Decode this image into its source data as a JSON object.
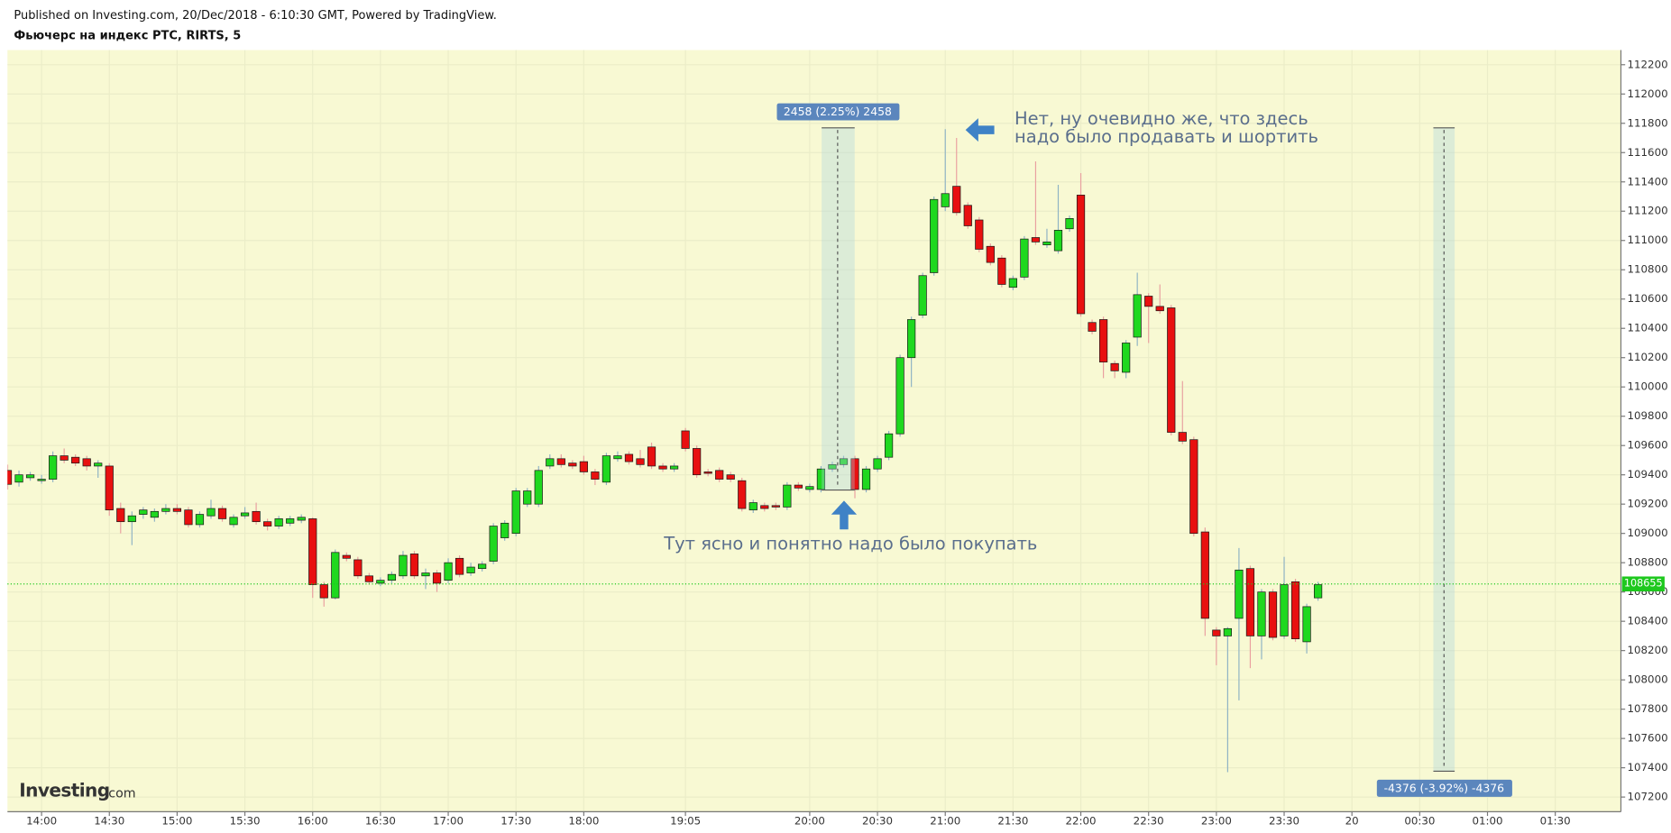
{
  "header": {
    "published": "Published on Investing.com, 20/Dec/2018 - 6:10:30 GMT, Powered by TradingView.",
    "symbol": "Фьючерс на индекс РТС, RIRTS, 5"
  },
  "logo": {
    "brand": "Investing",
    "suffix": ".com"
  },
  "chart_data": {
    "type": "candlestick",
    "up_color": "#1fd81f",
    "down_color": "#e81010",
    "grid": true,
    "categories": [
      null,
      null,
      null,
      "14:00",
      null,
      null,
      null,
      null,
      null,
      "14:30",
      null,
      null,
      null,
      null,
      null,
      "15:00",
      null,
      null,
      null,
      null,
      null,
      "15:30",
      null,
      null,
      null,
      null,
      null,
      "16:00",
      null,
      null,
      null,
      null,
      null,
      "16:30",
      null,
      null,
      null,
      null,
      null,
      "17:00",
      null,
      null,
      null,
      null,
      null,
      "17:30",
      null,
      null,
      null,
      null,
      null,
      "18:00",
      null,
      null,
      null,
      null,
      null,
      null,
      null,
      null,
      "19:05",
      null,
      null,
      null,
      null,
      null,
      null,
      null,
      null,
      null,
      null,
      "20:00",
      null,
      null,
      null,
      null,
      null,
      "20:30",
      null,
      null,
      null,
      null,
      null,
      "21:00",
      null,
      null,
      null,
      null,
      null,
      "21:30",
      null,
      null,
      null,
      null,
      null,
      "22:00",
      null,
      null,
      null,
      null,
      null,
      "22:30",
      null,
      null,
      null,
      null,
      null,
      "23:00",
      null,
      null,
      null,
      null,
      null,
      "23:30",
      null,
      null,
      null,
      null,
      null,
      "20",
      null,
      null,
      null,
      null,
      null,
      "00:30",
      null,
      null,
      null,
      null,
      null,
      "01:00",
      null,
      null,
      null,
      null,
      null,
      "01:30",
      null,
      null,
      null,
      null,
      null
    ],
    "open": [
      109430,
      109350,
      109380,
      109360,
      109370,
      109530,
      109520,
      109510,
      109460,
      109460,
      109170,
      109080,
      109130,
      109110,
      109150,
      109170,
      109160,
      109060,
      109120,
      109170,
      109060,
      109120,
      109150,
      109080,
      109050,
      109070,
      109090,
      109100,
      108650,
      108560,
      108850,
      108820,
      108710,
      108660,
      108680,
      108710,
      108860,
      108710,
      108730,
      108680,
      108830,
      108730,
      108760,
      108810,
      108970,
      109000,
      109200,
      109200,
      109460,
      109510,
      109480,
      109490,
      109420,
      109350,
      109510,
      109540,
      109510,
      109590,
      109460,
      109440,
      109700,
      109580,
      109420,
      109430,
      109400,
      109360,
      109160,
      109190,
      109190,
      109180,
      109330,
      109300,
      109300,
      109440,
      109470,
      109510,
      109300,
      109440,
      109520,
      109680,
      110200,
      110490,
      110780,
      111230,
      111370,
      111240,
      111140,
      110960,
      110880,
      110680,
      110750,
      111020,
      110970,
      110930,
      111080,
      111310,
      110440,
      110460,
      110160,
      110100,
      110340,
      110620,
      110550,
      110540,
      109690,
      109640,
      109010,
      108340,
      108300,
      108420,
      108760,
      108300,
      108600,
      108300,
      108670,
      108260,
      108560,
      null,
      null,
      null,
      null,
      null,
      null,
      null,
      null,
      null,
      null,
      null,
      null,
      null,
      null,
      null,
      null,
      null,
      null,
      null,
      null,
      null,
      null,
      null,
      null,
      null,
      null
    ],
    "high": [
      109470,
      109430,
      109420,
      109400,
      109560,
      109580,
      109540,
      109530,
      109500,
      109480,
      109210,
      109150,
      109180,
      109170,
      109200,
      109200,
      109180,
      109150,
      109230,
      109190,
      109130,
      109180,
      109210,
      109100,
      109120,
      109120,
      109130,
      109110,
      108670,
      108890,
      108870,
      108840,
      108730,
      108700,
      108740,
      108880,
      108880,
      108760,
      108750,
      108830,
      108850,
      108800,
      108810,
      109070,
      109090,
      109310,
      109310,
      109460,
      109540,
      109540,
      109500,
      109530,
      109440,
      109550,
      109560,
      109560,
      109570,
      109620,
      109480,
      109480,
      109720,
      109600,
      109440,
      109450,
      109420,
      109380,
      109230,
      109210,
      109210,
      109350,
      109350,
      109340,
      109460,
      109490,
      109530,
      109530,
      109460,
      109530,
      109700,
      110220,
      110480,
      110780,
      111300,
      111760,
      111700,
      111260,
      111160,
      110980,
      110900,
      110760,
      111030,
      111540,
      111080,
      111380,
      111170,
      111460,
      110460,
      110480,
      110180,
      110320,
      110780,
      110640,
      110700,
      110560,
      110040,
      109660,
      109040,
      108360,
      108360,
      108900,
      108780,
      108620,
      108620,
      108840,
      108690,
      108520,
      108670,
      null,
      null,
      null,
      null,
      null,
      null,
      null,
      null,
      null,
      null,
      null,
      null,
      null,
      null,
      null,
      null,
      null,
      null,
      null,
      null,
      null,
      null,
      null,
      null,
      null,
      null
    ],
    "low": [
      109300,
      109320,
      109360,
      109340,
      109350,
      109480,
      109460,
      109430,
      109380,
      109120,
      109000,
      108920,
      109100,
      109080,
      109130,
      109130,
      109040,
      109040,
      109100,
      109080,
      109040,
      109100,
      109060,
      109020,
      109030,
      109050,
      109070,
      108560,
      108500,
      108550,
      108810,
      108690,
      108650,
      108640,
      108660,
      108690,
      108690,
      108620,
      108600,
      108660,
      108700,
      108710,
      108740,
      108790,
      108950,
      108980,
      109180,
      109180,
      109440,
      109450,
      109440,
      109400,
      109330,
      109330,
      109490,
      109470,
      109450,
      109440,
      109420,
      109420,
      109560,
      109380,
      109390,
      109350,
      109350,
      109150,
      109140,
      109150,
      109160,
      109160,
      109290,
      109280,
      109280,
      109420,
      109450,
      109240,
      109280,
      109420,
      109500,
      109660,
      110000,
      110470,
      110760,
      111200,
      111170,
      111080,
      110920,
      110830,
      110680,
      110660,
      110730,
      110970,
      110950,
      110910,
      111060,
      110480,
      110360,
      110060,
      110060,
      110060,
      110280,
      110300,
      110500,
      109670,
      109610,
      108980,
      108300,
      108100,
      107370,
      107860,
      108080,
      108140,
      108270,
      108280,
      108260,
      108180,
      108540,
      null,
      null,
      null,
      null,
      null,
      null,
      null,
      null,
      null,
      null,
      null,
      null,
      null,
      null,
      null,
      null,
      null,
      null,
      null,
      null,
      null,
      null,
      null,
      null,
      null,
      null
    ],
    "close": [
      109335,
      109400,
      109400,
      109370,
      109530,
      109500,
      109480,
      109460,
      109480,
      109160,
      109080,
      109120,
      109160,
      109150,
      109170,
      109150,
      109060,
      109130,
      109170,
      109100,
      109110,
      109140,
      109080,
      109050,
      109100,
      109100,
      109110,
      108650,
      108560,
      108870,
      108830,
      108710,
      108670,
      108680,
      108720,
      108850,
      108710,
      108730,
      108660,
      108800,
      108720,
      108770,
      108790,
      109050,
      109070,
      109290,
      109290,
      109430,
      109510,
      109470,
      109460,
      109420,
      109370,
      109530,
      109530,
      109490,
      109470,
      109460,
      109440,
      109460,
      109580,
      109400,
      109410,
      109370,
      109370,
      109170,
      109210,
      109170,
      109180,
      109330,
      109310,
      109320,
      109440,
      109470,
      109510,
      109300,
      109440,
      109510,
      109680,
      110200,
      110460,
      110760,
      111280,
      111320,
      111190,
      111100,
      110940,
      110850,
      110700,
      110740,
      111010,
      110990,
      110990,
      111070,
      111150,
      110500,
      110380,
      110170,
      110110,
      110300,
      110630,
      110550,
      110520,
      109690,
      109630,
      109000,
      108420,
      108300,
      108350,
      108750,
      108300,
      108600,
      108290,
      108650,
      108280,
      108500,
      108650,
      null,
      null,
      null,
      null,
      null,
      null,
      null,
      null,
      null,
      null,
      null,
      null,
      null,
      null,
      null,
      null,
      null,
      null,
      null,
      null,
      null,
      null,
      null,
      null,
      null,
      null
    ],
    "ylim": [
      107100,
      112300
    ],
    "yticks": [
      107200,
      107400,
      107600,
      107800,
      108000,
      108200,
      108400,
      108600,
      108800,
      109000,
      109200,
      109400,
      109600,
      109800,
      110000,
      110200,
      110400,
      110600,
      110800,
      111000,
      111200,
      111400,
      111600,
      111800,
      112000,
      112200
    ],
    "last_price": 108655,
    "last_price_color": "#1ec81e",
    "annotations": {
      "measure_up": "2458 (2.25%) 2458",
      "measure_down": "-4376 (-3.92%) -4376",
      "sell_note": [
        "Нет, ну очевидно же, что здесь",
        "надо было продавать и шортить"
      ],
      "buy_note": "Тут ясно и понятно надо было покупать"
    }
  }
}
